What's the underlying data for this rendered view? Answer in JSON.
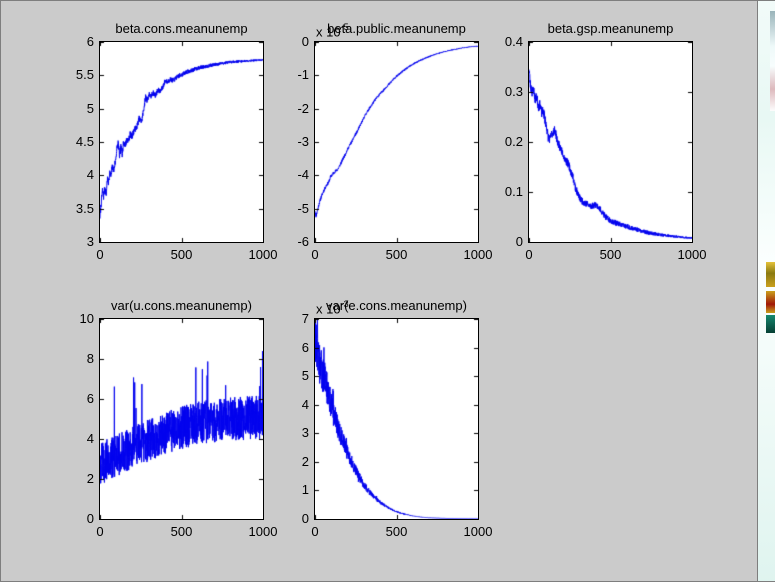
{
  "window": {
    "bg": "#cbcbcb",
    "plot_bg": "#ffffff",
    "axis_color": "#000000"
  },
  "chart_data": [
    {
      "type": "line",
      "title": "beta.cons.meanunemp",
      "exponent": null,
      "xlim": [
        0,
        1000
      ],
      "ylim": [
        3,
        6
      ],
      "xtick_values": [
        0,
        500,
        1000
      ],
      "xtick_labels": [
        "0",
        "500",
        "1000"
      ],
      "ytick_values": [
        3,
        3.5,
        4,
        4.5,
        5,
        5.5,
        6
      ],
      "ytick_labels": [
        "3",
        "3.5",
        "4",
        "4.5",
        "5",
        "5.5",
        "6"
      ],
      "line_color": "#0000ee",
      "grid": false,
      "legend": null,
      "keypoints": [
        [
          0,
          3.38
        ],
        [
          8,
          3.6
        ],
        [
          15,
          3.78
        ],
        [
          22,
          3.68
        ],
        [
          30,
          3.82
        ],
        [
          38,
          3.72
        ],
        [
          45,
          3.95
        ],
        [
          52,
          3.88
        ],
        [
          60,
          4.05
        ],
        [
          68,
          3.98
        ],
        [
          75,
          4.12
        ],
        [
          85,
          4.08
        ],
        [
          95,
          4.22
        ],
        [
          105,
          4.42
        ],
        [
          112,
          4.5
        ],
        [
          120,
          4.28
        ],
        [
          128,
          4.42
        ],
        [
          136,
          4.32
        ],
        [
          145,
          4.5
        ],
        [
          155,
          4.45
        ],
        [
          165,
          4.55
        ],
        [
          175,
          4.52
        ],
        [
          185,
          4.62
        ],
        [
          195,
          4.58
        ],
        [
          210,
          4.68
        ],
        [
          225,
          4.72
        ],
        [
          240,
          4.85
        ],
        [
          255,
          4.8
        ],
        [
          265,
          4.95
        ],
        [
          272,
          5.05
        ],
        [
          280,
          5.18
        ],
        [
          290,
          5.12
        ],
        [
          300,
          5.22
        ],
        [
          312,
          5.18
        ],
        [
          325,
          5.24
        ],
        [
          340,
          5.2
        ],
        [
          355,
          5.28
        ],
        [
          370,
          5.26
        ],
        [
          385,
          5.32
        ],
        [
          400,
          5.42
        ],
        [
          415,
          5.4
        ],
        [
          430,
          5.44
        ],
        [
          450,
          5.42
        ],
        [
          470,
          5.47
        ],
        [
          490,
          5.5
        ],
        [
          510,
          5.52
        ],
        [
          530,
          5.55
        ],
        [
          560,
          5.57
        ],
        [
          590,
          5.6
        ],
        [
          620,
          5.62
        ],
        [
          660,
          5.64
        ],
        [
          700,
          5.66
        ],
        [
          750,
          5.68
        ],
        [
          800,
          5.7
        ],
        [
          860,
          5.71
        ],
        [
          920,
          5.72
        ],
        [
          1000,
          5.73
        ]
      ],
      "noise": {
        "mode": "absolute",
        "amp_start": 0.055,
        "amp_end": 0.012,
        "seed": 7
      }
    },
    {
      "type": "line",
      "title": "beta.public.meanunemp",
      "exponent": {
        "text": "x 10",
        "sup": "-5"
      },
      "xlim": [
        0,
        1000
      ],
      "ylim": [
        -6,
        0
      ],
      "xtick_values": [
        0,
        500,
        1000
      ],
      "xtick_labels": [
        "0",
        "500",
        "1000"
      ],
      "ytick_values": [
        -6,
        -5,
        -4,
        -3,
        -2,
        -1,
        0
      ],
      "ytick_labels": [
        "-6",
        "-5",
        "-4",
        "-3",
        "-2",
        "-1",
        "0"
      ],
      "line_color": "#0000ee",
      "grid": false,
      "legend": null,
      "keypoints": [
        [
          0,
          -5.05
        ],
        [
          6,
          -5.22
        ],
        [
          14,
          -5.08
        ],
        [
          25,
          -4.85
        ],
        [
          40,
          -4.62
        ],
        [
          55,
          -4.45
        ],
        [
          70,
          -4.3
        ],
        [
          85,
          -4.2
        ],
        [
          95,
          -4.05
        ],
        [
          110,
          -3.95
        ],
        [
          125,
          -3.88
        ],
        [
          140,
          -3.82
        ],
        [
          155,
          -3.68
        ],
        [
          170,
          -3.52
        ],
        [
          185,
          -3.38
        ],
        [
          200,
          -3.22
        ],
        [
          215,
          -3.08
        ],
        [
          230,
          -2.95
        ],
        [
          245,
          -2.8
        ],
        [
          260,
          -2.68
        ],
        [
          275,
          -2.52
        ],
        [
          290,
          -2.38
        ],
        [
          305,
          -2.22
        ],
        [
          320,
          -2.1
        ],
        [
          335,
          -1.98
        ],
        [
          350,
          -1.88
        ],
        [
          365,
          -1.76
        ],
        [
          380,
          -1.66
        ],
        [
          395,
          -1.58
        ],
        [
          410,
          -1.5
        ],
        [
          425,
          -1.42
        ],
        [
          440,
          -1.34
        ],
        [
          455,
          -1.26
        ],
        [
          470,
          -1.18
        ],
        [
          485,
          -1.1
        ],
        [
          500,
          -1.03
        ],
        [
          520,
          -0.95
        ],
        [
          540,
          -0.87
        ],
        [
          560,
          -0.8
        ],
        [
          580,
          -0.73
        ],
        [
          600,
          -0.67
        ],
        [
          630,
          -0.59
        ],
        [
          660,
          -0.52
        ],
        [
          690,
          -0.46
        ],
        [
          720,
          -0.4
        ],
        [
          750,
          -0.35
        ],
        [
          780,
          -0.31
        ],
        [
          810,
          -0.27
        ],
        [
          840,
          -0.24
        ],
        [
          870,
          -0.21
        ],
        [
          900,
          -0.18
        ],
        [
          930,
          -0.16
        ],
        [
          960,
          -0.14
        ],
        [
          1000,
          -0.12
        ]
      ],
      "noise": {
        "mode": "absolute",
        "amp_start": 0.045,
        "amp_end": 0.008,
        "seed": 11
      }
    },
    {
      "type": "line",
      "title": "beta.gsp.meanunemp",
      "exponent": null,
      "xlim": [
        0,
        1000
      ],
      "ylim": [
        0,
        0.4
      ],
      "xtick_values": [
        0,
        500,
        1000
      ],
      "xtick_labels": [
        "0",
        "500",
        "1000"
      ],
      "ytick_values": [
        0,
        0.1,
        0.2,
        0.3,
        0.4
      ],
      "ytick_labels": [
        "0",
        "0.1",
        "0.2",
        "0.3",
        "0.4"
      ],
      "line_color": "#0000ee",
      "grid": false,
      "legend": null,
      "keypoints": [
        [
          0,
          0.35
        ],
        [
          8,
          0.315
        ],
        [
          18,
          0.3
        ],
        [
          28,
          0.305
        ],
        [
          38,
          0.285
        ],
        [
          48,
          0.29
        ],
        [
          58,
          0.27
        ],
        [
          68,
          0.275
        ],
        [
          78,
          0.258
        ],
        [
          88,
          0.262
        ],
        [
          98,
          0.245
        ],
        [
          108,
          0.23
        ],
        [
          118,
          0.21
        ],
        [
          128,
          0.205
        ],
        [
          138,
          0.215
        ],
        [
          148,
          0.22
        ],
        [
          158,
          0.225
        ],
        [
          168,
          0.21
        ],
        [
          178,
          0.198
        ],
        [
          188,
          0.19
        ],
        [
          198,
          0.185
        ],
        [
          208,
          0.178
        ],
        [
          218,
          0.168
        ],
        [
          228,
          0.162
        ],
        [
          238,
          0.158
        ],
        [
          248,
          0.15
        ],
        [
          258,
          0.14
        ],
        [
          268,
          0.132
        ],
        [
          278,
          0.118
        ],
        [
          288,
          0.105
        ],
        [
          298,
          0.098
        ],
        [
          308,
          0.09
        ],
        [
          320,
          0.084
        ],
        [
          335,
          0.08
        ],
        [
          350,
          0.077
        ],
        [
          365,
          0.074
        ],
        [
          380,
          0.072
        ],
        [
          395,
          0.073
        ],
        [
          410,
          0.075
        ],
        [
          425,
          0.07
        ],
        [
          440,
          0.064
        ],
        [
          455,
          0.057
        ],
        [
          470,
          0.05
        ],
        [
          485,
          0.046
        ],
        [
          500,
          0.043
        ],
        [
          520,
          0.04
        ],
        [
          545,
          0.037
        ],
        [
          570,
          0.034
        ],
        [
          600,
          0.031
        ],
        [
          630,
          0.028
        ],
        [
          660,
          0.025
        ],
        [
          700,
          0.021
        ],
        [
          740,
          0.018
        ],
        [
          780,
          0.016
        ],
        [
          820,
          0.014
        ],
        [
          860,
          0.012
        ],
        [
          900,
          0.011
        ],
        [
          950,
          0.009
        ],
        [
          1000,
          0.008
        ]
      ],
      "noise": {
        "mode": "absolute",
        "amp_start": 0.01,
        "amp_end": 0.0015,
        "seed": 23
      }
    },
    {
      "type": "line",
      "title": "var(u.cons.meanunemp)",
      "exponent": null,
      "xlim": [
        0,
        1000
      ],
      "ylim": [
        0,
        10
      ],
      "xtick_values": [
        0,
        500,
        1000
      ],
      "xtick_labels": [
        "0",
        "500",
        "1000"
      ],
      "ytick_values": [
        0,
        2,
        4,
        6,
        8,
        10
      ],
      "ytick_labels": [
        "0",
        "2",
        "4",
        "6",
        "8",
        "10"
      ],
      "line_color": "#0000ee",
      "grid": false,
      "legend": null,
      "keypoints": [
        [
          0,
          2.7
        ],
        [
          40,
          2.95
        ],
        [
          80,
          3.1
        ],
        [
          120,
          3.25
        ],
        [
          160,
          3.4
        ],
        [
          200,
          3.55
        ],
        [
          240,
          3.7
        ],
        [
          280,
          3.85
        ],
        [
          320,
          4.0
        ],
        [
          360,
          4.15
        ],
        [
          400,
          4.3
        ],
        [
          440,
          4.4
        ],
        [
          480,
          4.5
        ],
        [
          520,
          4.6
        ],
        [
          560,
          4.7
        ],
        [
          600,
          4.78
        ],
        [
          640,
          4.85
        ],
        [
          680,
          4.9
        ],
        [
          720,
          4.92
        ],
        [
          760,
          4.95
        ],
        [
          800,
          5.0
        ],
        [
          850,
          5.0
        ],
        [
          900,
          5.05
        ],
        [
          950,
          5.08
        ],
        [
          1000,
          5.1
        ]
      ],
      "noise": {
        "mode": "absolute",
        "amp_start": 1.05,
        "amp_end": 1.1,
        "seed": 5,
        "spike_prob": 0.02,
        "spike_mult": 3.4,
        "spike_sign": "up"
      }
    },
    {
      "type": "line",
      "title": "var(e.cons.meanunemp)",
      "exponent": {
        "text": "x 10",
        "sup": "-3"
      },
      "xlim": [
        0,
        1000
      ],
      "ylim": [
        0,
        7
      ],
      "xtick_values": [
        0,
        500,
        1000
      ],
      "xtick_labels": [
        "0",
        "500",
        "1000"
      ],
      "ytick_values": [
        0,
        1,
        2,
        3,
        4,
        5,
        6,
        7
      ],
      "ytick_labels": [
        "0",
        "1",
        "2",
        "3",
        "4",
        "5",
        "6",
        "7"
      ],
      "line_color": "#0000ee",
      "grid": false,
      "legend": null,
      "keypoints": [
        [
          0,
          6.3
        ],
        [
          20,
          5.6
        ],
        [
          40,
          5.2
        ],
        [
          60,
          4.9
        ],
        [
          80,
          4.4
        ],
        [
          100,
          4.0
        ],
        [
          120,
          3.6
        ],
        [
          140,
          3.2
        ],
        [
          160,
          2.9
        ],
        [
          180,
          2.6
        ],
        [
          200,
          2.3
        ],
        [
          220,
          2.05
        ],
        [
          240,
          1.8
        ],
        [
          260,
          1.6
        ],
        [
          280,
          1.4
        ],
        [
          300,
          1.2
        ],
        [
          320,
          1.05
        ],
        [
          340,
          0.9
        ],
        [
          360,
          0.78
        ],
        [
          380,
          0.68
        ],
        [
          400,
          0.58
        ],
        [
          430,
          0.46
        ],
        [
          460,
          0.36
        ],
        [
          490,
          0.28
        ],
        [
          520,
          0.22
        ],
        [
          550,
          0.17
        ],
        [
          580,
          0.13
        ],
        [
          620,
          0.09
        ],
        [
          660,
          0.06
        ],
        [
          700,
          0.045
        ],
        [
          750,
          0.03
        ],
        [
          800,
          0.02
        ],
        [
          850,
          0.015
        ],
        [
          900,
          0.012
        ],
        [
          950,
          0.01
        ],
        [
          1000,
          0.008
        ]
      ],
      "noise": {
        "mode": "proportional",
        "amp_start": 0.13,
        "amp_end": 0.06,
        "seed": 13,
        "spike_prob": 0.05,
        "spike_mult": 1.7,
        "spike_sign": "both"
      }
    }
  ]
}
